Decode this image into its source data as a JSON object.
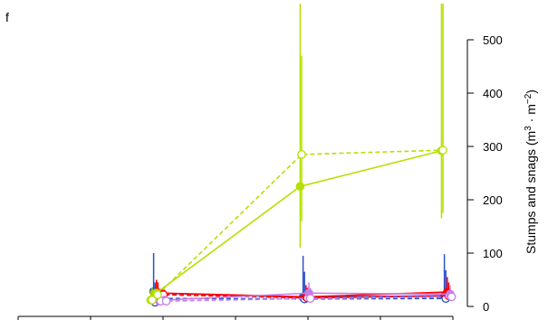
{
  "chart_data": {
    "type": "line",
    "panel_label": "f",
    "ylabel_main": "Stumps and snags (m",
    "ylabel_sup1": "3",
    "ylabel_mid": " · m",
    "ylabel_sup2": "−2",
    "ylabel_end": ")",
    "y_axis_position": "right",
    "ylim": [
      -5,
      520
    ],
    "yticks": [
      0,
      100,
      200,
      300,
      400,
      500
    ],
    "ytick_labels": [
      "0",
      "100",
      "200",
      "300",
      "400",
      "500"
    ],
    "x_visible_ticks": 7,
    "x_time_points": [
      1,
      2,
      3,
      4
    ],
    "grid": false,
    "legend": "none",
    "series": [
      {
        "color": "#b5e000",
        "marker": "filled",
        "linestyle": "solid",
        "x": [
          1,
          2,
          3,
          4
        ],
        "y": [
          12,
          25,
          225,
          292
        ],
        "err_low": [
          0,
          0,
          110,
          165
        ],
        "err_high": [
          30,
          0,
          600,
          600
        ]
      },
      {
        "color": "#b5e000",
        "marker": "open",
        "linestyle": "dashed",
        "x": [
          1,
          2,
          3,
          4
        ],
        "y": [
          12,
          22,
          285,
          293
        ],
        "err_low": [
          0,
          0,
          160,
          175
        ],
        "err_high": [
          35,
          0,
          470,
          600
        ]
      },
      {
        "color": "#2b4fcc",
        "marker": "filled",
        "linestyle": "solid",
        "x": [
          1,
          2,
          3,
          4
        ],
        "y": [
          28,
          25,
          17,
          20
        ],
        "err_low": [
          0,
          0,
          0,
          0
        ],
        "err_high": [
          100,
          0,
          95,
          98
        ]
      },
      {
        "color": "#2b4fcc",
        "marker": "open",
        "linestyle": "dashed",
        "x": [
          1,
          2,
          3,
          4
        ],
        "y": [
          8,
          15,
          14,
          15
        ],
        "err_low": [
          0,
          0,
          0,
          0
        ],
        "err_high": [
          45,
          0,
          65,
          68
        ]
      },
      {
        "color": "#ff0000",
        "marker": "filled",
        "linestyle": "solid",
        "x": [
          1,
          2,
          3,
          4
        ],
        "y": [
          25,
          25,
          18,
          27
        ],
        "err_low": [
          0,
          0,
          0,
          0
        ],
        "err_high": [
          50,
          0,
          40,
          55
        ]
      },
      {
        "color": "#ff0000",
        "marker": "open",
        "linestyle": "dashed",
        "x": [
          1,
          2,
          3,
          4
        ],
        "y": [
          25,
          22,
          16,
          20
        ],
        "err_low": [
          0,
          0,
          0,
          0
        ],
        "err_high": [
          45,
          0,
          35,
          45
        ]
      },
      {
        "color": "#c77ee6",
        "marker": "filled",
        "linestyle": "solid",
        "x": [
          1,
          2,
          3,
          4
        ],
        "y": [
          10,
          12,
          25,
          23
        ],
        "err_low": [
          0,
          0,
          0,
          0
        ],
        "err_high": [
          30,
          0,
          45,
          40
        ]
      },
      {
        "color": "#c77ee6",
        "marker": "open",
        "linestyle": "dashed",
        "x": [
          1,
          2,
          3,
          4
        ],
        "y": [
          10,
          10,
          15,
          18
        ],
        "err_low": [
          0,
          0,
          0,
          0
        ],
        "err_high": [
          25,
          0,
          35,
          30
        ]
      }
    ]
  }
}
